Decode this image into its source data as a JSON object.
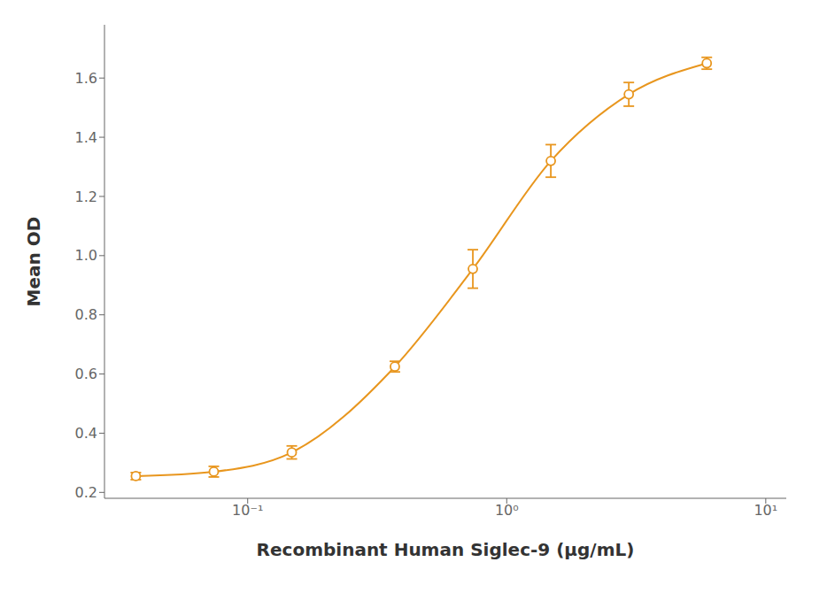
{
  "chart_data": {
    "type": "line",
    "xlabel": "Recombinant Human Siglec-9 (μg/mL)",
    "ylabel": "Mean OD",
    "x": [
      0.037,
      0.074,
      0.148,
      0.37,
      0.74,
      1.48,
      2.96,
      5.92
    ],
    "values": [
      0.255,
      0.27,
      0.335,
      0.625,
      0.955,
      1.32,
      1.545,
      1.65
    ],
    "errors": [
      0.012,
      0.018,
      0.022,
      0.018,
      0.065,
      0.055,
      0.04,
      0.02
    ],
    "color": "#E8961E",
    "marker": "circle",
    "line_style": "solid",
    "log": "x",
    "grid": false,
    "xlim": [
      0.028,
      12.0
    ],
    "xticks": [
      {
        "value": 0.1,
        "label": "10⁻¹"
      },
      {
        "value": 1,
        "label": "10⁰"
      },
      {
        "value": 10,
        "label": "10¹"
      }
    ],
    "ylim": [
      0.18,
      1.78
    ],
    "yticks": [
      0.2,
      0.4,
      0.6,
      0.8,
      {
        "value": 1,
        "label": "1.0"
      },
      1.2,
      1.4,
      1.6
    ]
  }
}
